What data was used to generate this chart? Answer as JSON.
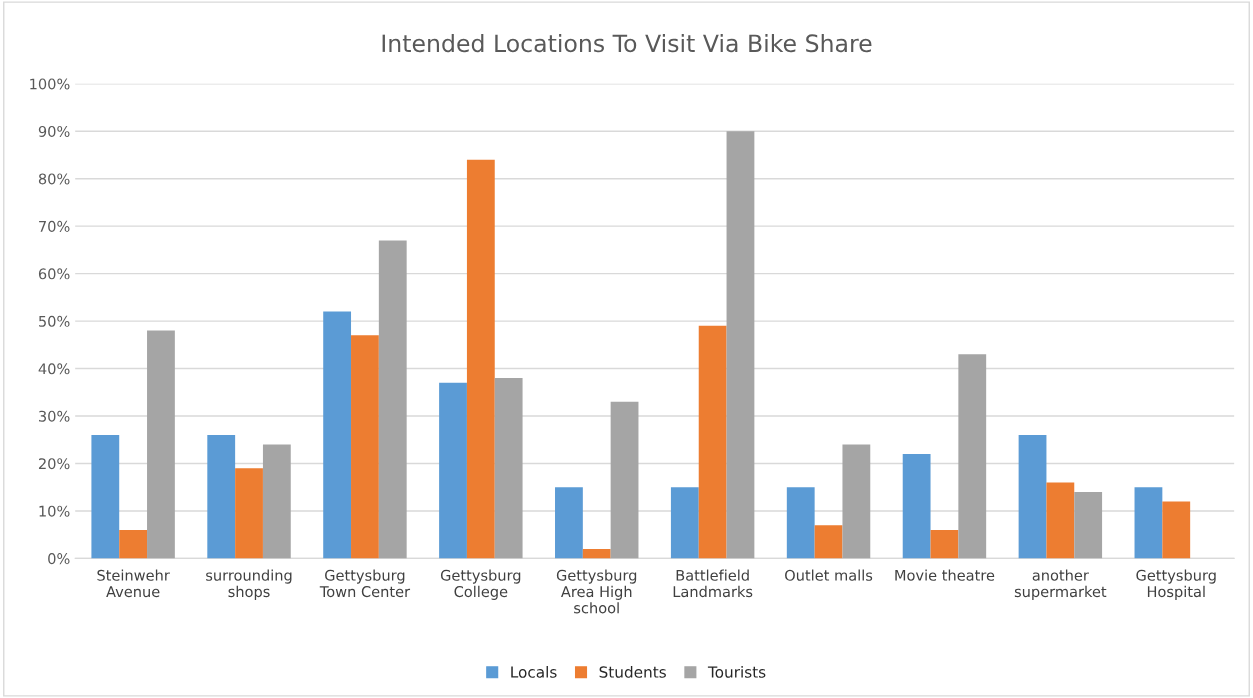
{
  "chart_data": {
    "type": "bar",
    "title": "Intended Locations To Visit Via Bike Share",
    "categories": [
      "Steinwehr\nAvenue",
      "surrounding\nshops",
      "Gettysburg\nTown Center",
      "Gettysburg\nCollege",
      "Gettysburg\nArea High\nschool",
      "Battlefield\nLandmarks",
      "Outlet malls",
      "Movie theatre",
      "another\nsupermarket",
      "Gettysburg\nHospital"
    ],
    "series": [
      {
        "name": "Locals",
        "color": "#5b9bd5",
        "values": [
          26,
          26,
          52,
          37,
          15,
          15,
          15,
          22,
          26,
          15
        ]
      },
      {
        "name": "Students",
        "color": "#ed7d31",
        "values": [
          6,
          19,
          47,
          84,
          2,
          49,
          7,
          6,
          16,
          12
        ]
      },
      {
        "name": "Tourists",
        "color": "#a5a5a5",
        "values": [
          48,
          24,
          67,
          38,
          33,
          90,
          24,
          43,
          14,
          null
        ]
      }
    ],
    "ylim": [
      0,
      100
    ],
    "yticks": [
      {
        "value": 0,
        "label": "0%"
      },
      {
        "value": 10,
        "label": "10%"
      },
      {
        "value": 20,
        "label": "20%"
      },
      {
        "value": 30,
        "label": "30%"
      },
      {
        "value": 40,
        "label": "40%"
      },
      {
        "value": 50,
        "label": "50%"
      },
      {
        "value": 60,
        "label": "60%"
      },
      {
        "value": 70,
        "label": "70%"
      },
      {
        "value": 80,
        "label": "80%"
      },
      {
        "value": 90,
        "label": "90%"
      },
      {
        "value": 100,
        "label": "100%"
      }
    ],
    "grid": "y",
    "legend": "bottom"
  }
}
